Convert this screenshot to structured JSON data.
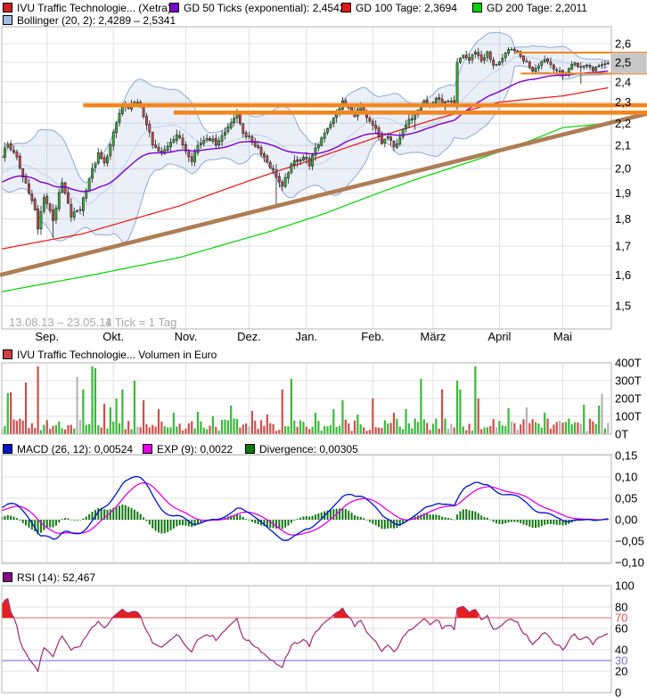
{
  "chart_data": [
    {
      "name": "price",
      "type": "candlestick",
      "title": "IVU Traffic Technologie... (Xetra)",
      "legend": {
        "instrument": "IVU Traffic Technologie... (Xetra)",
        "gd50": "GD 50 Ticks (exponential): 2,4542",
        "gd100": "GD 100 Tage: 2,3694",
        "gd200": "GD 200 Tage: 2,2011",
        "bollinger": "Bollinger (20, 2): 2,4289 – 2,5341"
      },
      "footnote": {
        "date_range": "13.08.13 – 23.05.14",
        "tick_note": "1 Tick = 1 Tag"
      },
      "x_axis": {
        "months": [
          {
            "label": "Sep.",
            "i": 15
          },
          {
            "label": "Okt.",
            "i": 37
          },
          {
            "label": "Nov.",
            "i": 61
          },
          {
            "label": "Dez.",
            "i": 82
          },
          {
            "label": "Jan.",
            "i": 101
          },
          {
            "label": "Feb.",
            "i": 123
          },
          {
            "label": "März",
            "i": 143
          },
          {
            "label": "April",
            "i": 165
          },
          {
            "label": "Mai",
            "i": 186
          }
        ]
      },
      "y_axis": {
        "scale": "log",
        "ticks": [
          {
            "label": "2,6",
            "v": 2.6
          },
          {
            "label": "2,5",
            "v": 2.5
          },
          {
            "label": "2,4",
            "v": 2.4
          },
          {
            "label": "2,3",
            "v": 2.3
          },
          {
            "label": "2,2",
            "v": 2.2
          },
          {
            "label": "2,1",
            "v": 2.1
          },
          {
            "label": "2,0",
            "v": 2.0
          },
          {
            "label": "1,9",
            "v": 1.9
          },
          {
            "label": "1,8",
            "v": 1.8
          },
          {
            "label": "1,7",
            "v": 1.7
          },
          {
            "label": "1,6",
            "v": 1.6
          },
          {
            "label": "1,5",
            "v": 1.5
          }
        ]
      },
      "series": {
        "days": 202,
        "warmup_anchors": [
          [
            -60,
            1.8
          ],
          [
            -40,
            1.9
          ],
          [
            -20,
            1.96
          ],
          [
            -8,
            1.96
          ],
          [
            -1,
            2.045
          ]
        ],
        "close_anchors": [
          [
            0,
            2.06
          ],
          [
            2,
            2.11
          ],
          [
            5,
            2.04
          ],
          [
            8,
            1.94
          ],
          [
            11,
            1.83
          ],
          [
            12,
            1.76
          ],
          [
            14,
            1.89
          ],
          [
            17,
            1.8
          ],
          [
            20,
            1.94
          ],
          [
            23,
            1.81
          ],
          [
            26,
            1.84
          ],
          [
            29,
            1.96
          ],
          [
            32,
            2.06
          ],
          [
            34,
            2.02
          ],
          [
            36,
            2.1
          ],
          [
            38,
            2.2
          ],
          [
            40,
            2.29
          ],
          [
            42,
            2.26
          ],
          [
            44,
            2.31
          ],
          [
            46,
            2.27
          ],
          [
            48,
            2.2
          ],
          [
            50,
            2.1
          ],
          [
            53,
            2.06
          ],
          [
            56,
            2.12
          ],
          [
            58,
            2.15
          ],
          [
            61,
            2.08
          ],
          [
            63,
            2.04
          ],
          [
            65,
            2.1
          ],
          [
            68,
            2.14
          ],
          [
            71,
            2.11
          ],
          [
            74,
            2.16
          ],
          [
            76,
            2.21
          ],
          [
            78,
            2.24
          ],
          [
            80,
            2.16
          ],
          [
            82,
            2.13
          ],
          [
            85,
            2.09
          ],
          [
            88,
            2.03
          ],
          [
            91,
            1.97
          ],
          [
            93,
            1.92
          ],
          [
            95,
            1.99
          ],
          [
            97,
            2.03
          ],
          [
            100,
            2.05
          ],
          [
            102,
            2.02
          ],
          [
            104,
            2.08
          ],
          [
            107,
            2.16
          ],
          [
            110,
            2.22
          ],
          [
            113,
            2.3
          ],
          [
            115,
            2.27
          ],
          [
            117,
            2.24
          ],
          [
            119,
            2.28
          ],
          [
            121,
            2.22
          ],
          [
            124,
            2.17
          ],
          [
            126,
            2.11
          ],
          [
            128,
            2.14
          ],
          [
            130,
            2.09
          ],
          [
            132,
            2.14
          ],
          [
            134,
            2.19
          ],
          [
            136,
            2.23
          ],
          [
            138,
            2.27
          ],
          [
            140,
            2.31
          ],
          [
            142,
            2.28
          ],
          [
            144,
            2.32
          ],
          [
            146,
            2.29
          ],
          [
            148,
            2.3
          ],
          [
            150,
            2.29
          ],
          [
            151,
            2.5
          ],
          [
            153,
            2.54
          ],
          [
            155,
            2.51
          ],
          [
            157,
            2.56
          ],
          [
            159,
            2.51
          ],
          [
            161,
            2.55
          ],
          [
            163,
            2.48
          ],
          [
            166,
            2.52
          ],
          [
            168,
            2.56
          ],
          [
            170,
            2.57
          ],
          [
            172,
            2.53
          ],
          [
            174,
            2.5
          ],
          [
            176,
            2.46
          ],
          [
            178,
            2.49
          ],
          [
            180,
            2.52
          ],
          [
            182,
            2.49
          ],
          [
            184,
            2.46
          ],
          [
            186,
            2.43
          ],
          [
            188,
            2.47
          ],
          [
            190,
            2.5
          ],
          [
            192,
            2.47
          ],
          [
            194,
            2.49
          ],
          [
            196,
            2.46
          ],
          [
            198,
            2.49
          ],
          [
            201,
            2.5
          ]
        ],
        "long_wicks": [
          [
            17,
            1.73
          ],
          [
            91,
            1.855
          ],
          [
            137,
            2.17
          ],
          [
            192,
            2.39
          ]
        ]
      },
      "indicators": {
        "gd50_value": 2.4542,
        "gd100_value": 2.3694,
        "gd200_value": 2.2011,
        "bollinger_lower": 2.4289,
        "bollinger_upper": 2.5341,
        "gd100_anchors": [
          [
            0,
            1.69
          ],
          [
            27,
            1.745
          ],
          [
            59,
            1.85
          ],
          [
            82,
            1.95
          ],
          [
            101,
            2.03
          ],
          [
            123,
            2.13
          ],
          [
            144,
            2.22
          ],
          [
            165,
            2.3
          ],
          [
            186,
            2.33
          ],
          [
            201,
            2.37
          ]
        ],
        "gd200_anchors": [
          [
            0,
            1.545
          ],
          [
            30,
            1.6
          ],
          [
            59,
            1.66
          ],
          [
            88,
            1.75
          ],
          [
            107,
            1.82
          ],
          [
            136,
            1.95
          ],
          [
            158,
            2.04
          ],
          [
            177,
            2.13
          ],
          [
            186,
            2.18
          ],
          [
            201,
            2.2
          ]
        ]
      },
      "annotations": {
        "resistance_lines": [
          {
            "price": 2.285,
            "i_start": 27
          },
          {
            "price": 2.25,
            "i_start": 57
          }
        ],
        "range_lines": [
          {
            "price": 2.552,
            "i_start": 170
          },
          {
            "price": 2.442,
            "i_start": 172
          }
        ],
        "trendline": {
          "from_price": 1.6,
          "to_price": 2.245
        },
        "last_price_box": {
          "top_price": 2.552,
          "bottom_price": 2.442
        }
      }
    },
    {
      "name": "volume",
      "type": "bar",
      "legend": {
        "label": "IVU Traffic Technologie... Volumen in Euro"
      },
      "unit": "T",
      "y_axis": {
        "ticks": [
          {
            "label": "400T",
            "v": 400
          },
          {
            "label": "300T",
            "v": 300
          },
          {
            "label": "200T",
            "v": 200
          },
          {
            "label": "100T",
            "v": 100
          },
          {
            "label": "0T",
            "v": 0
          }
        ]
      },
      "series": {
        "base_min": 18,
        "base_max": 88,
        "spikes": [
          [
            2,
            230
          ],
          [
            3,
            235
          ],
          [
            8,
            290
          ],
          [
            12,
            380
          ],
          [
            25,
            320
          ],
          [
            27,
            250
          ],
          [
            30,
            380
          ],
          [
            31,
            370
          ],
          [
            34,
            170
          ],
          [
            36,
            150
          ],
          [
            38,
            200
          ],
          [
            40,
            250
          ],
          [
            44,
            300
          ],
          [
            47,
            190
          ],
          [
            52,
            140
          ],
          [
            57,
            120
          ],
          [
            65,
            125
          ],
          [
            70,
            100
          ],
          [
            76,
            160
          ],
          [
            83,
            130
          ],
          [
            88,
            110
          ],
          [
            93,
            250
          ],
          [
            96,
            310
          ],
          [
            104,
            120
          ],
          [
            110,
            140
          ],
          [
            113,
            190
          ],
          [
            118,
            110
          ],
          [
            123,
            200
          ],
          [
            130,
            120
          ],
          [
            134,
            140
          ],
          [
            139,
            310
          ],
          [
            146,
            250
          ],
          [
            151,
            300
          ],
          [
            152,
            250
          ],
          [
            157,
            380
          ],
          [
            158,
            200
          ],
          [
            168,
            145
          ],
          [
            174,
            150
          ],
          [
            180,
            120
          ],
          [
            193,
            165
          ],
          [
            198,
            160
          ],
          [
            199,
            225
          ]
        ]
      }
    },
    {
      "name": "macd",
      "type": "line",
      "legend": {
        "macd": "MACD (26, 12): 0,00524",
        "exp": "EXP (9): 0,0022",
        "divergence": "Divergence: 0,00305"
      },
      "params": {
        "slow": 26,
        "fast": 12,
        "signal": 9
      },
      "values": {
        "macd": 0.00524,
        "exp": 0.0022,
        "divergence": 0.00305
      },
      "y_axis": {
        "ticks": [
          {
            "label": "0,15",
            "v": 0.15
          },
          {
            "label": "0,10",
            "v": 0.1
          },
          {
            "label": "0,05",
            "v": 0.05
          },
          {
            "label": "0,00",
            "v": 0.0
          },
          {
            "label": "−0,05",
            "v": -0.05
          },
          {
            "label": "−0,10",
            "v": -0.1
          }
        ]
      }
    },
    {
      "name": "rsi",
      "type": "line",
      "legend": {
        "label": "RSI (14): 52,467"
      },
      "period": 14,
      "value": 52.467,
      "levels": {
        "overbought": 70,
        "oversold": 30
      },
      "y_axis": {
        "ticks": [
          {
            "label": "100",
            "v": 100
          },
          {
            "label": "80",
            "v": 80
          },
          {
            "label": "70",
            "v": 70,
            "color": "#e05050"
          },
          {
            "label": "60",
            "v": 60
          },
          {
            "label": "40",
            "v": 40
          },
          {
            "label": "30",
            "v": 30,
            "color": "#7575e0"
          },
          {
            "label": "20",
            "v": 20
          },
          {
            "label": "0",
            "v": 0
          }
        ]
      }
    }
  ],
  "colors": {
    "ivu": "#d02020",
    "gd50": "#7a00cc",
    "gd100": "#e81515",
    "gd200": "#00d400",
    "bollinger": "#a3bce4",
    "bollinger_edge": "#8fa8d8",
    "bollinger_fill": "rgba(114,143,206,0.14)",
    "bollinger_mid": "#bed0ec",
    "candle_up": "#3cb83c",
    "candle_down": "#cf4f4c",
    "candle_neutral": "#b4b4b4",
    "candle_outline": "#1a1a1a",
    "volume_legend": "#cf4040",
    "macd": "#0013cc",
    "exp": "#e800e8",
    "divergence": "#117711",
    "rsi": "#8a0a8a",
    "rsi_line": "#a02878",
    "overbought": "#f28080",
    "oversold": "#8585e8",
    "rsi_alert_fill": "#e32020",
    "orange": "#f4861f",
    "brown": "#ad7d55",
    "last_price_box": "#c7c7c7",
    "grid": "#e0e0e0",
    "border": "#b4b4b4",
    "muted_text": "#a9a9a9"
  }
}
